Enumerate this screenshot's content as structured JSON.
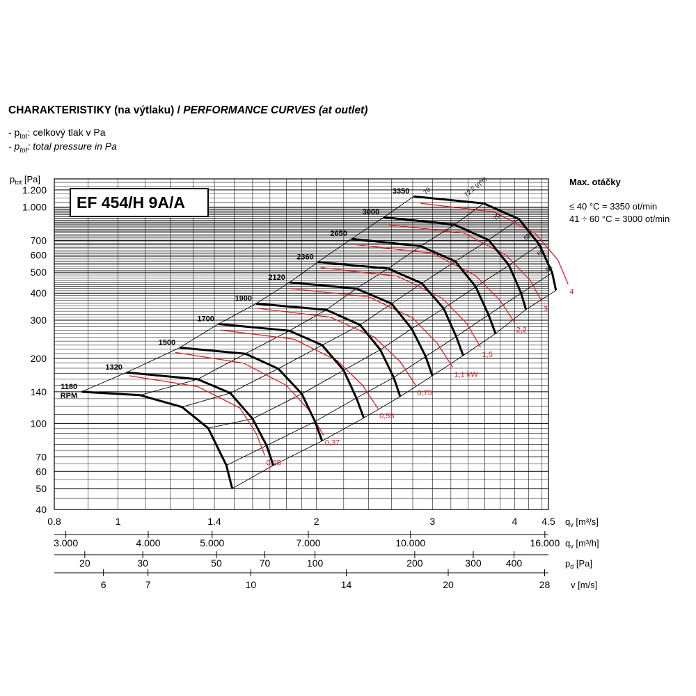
{
  "title_bold": "CHARAKTERISTIKY (na výtlaku) / ",
  "title_italic": "PERFORMANCE CURVES (at outlet)",
  "legend_cz": {
    "prefix": "- p",
    "sub": "tot",
    "suffix": ": celkový tlak v Pa"
  },
  "legend_en": {
    "prefix": "- p",
    "sub": "tot",
    "suffix": ": total pressure in Pa"
  },
  "model": "EF 454/H 9A/A",
  "max_speed": {
    "title": "Max. otáčky",
    "line1": "≤ 40 °C = 3350 ot/min",
    "line2": "41 ÷ 60 °C = 3000 ot/min"
  },
  "chart_data": {
    "type": "line",
    "x_scale": "log",
    "y_scale": "log",
    "ylabel": {
      "main": "p",
      "sub": "tot",
      "unit": " [Pa]"
    },
    "y_ticks": [
      "1.200",
      "1.000",
      "700",
      "600",
      "500",
      "400",
      "300",
      "200",
      "140",
      "100",
      "70",
      "60",
      "50",
      "40"
    ],
    "y_tick_values": [
      1200,
      1000,
      700,
      600,
      500,
      400,
      300,
      200,
      140,
      100,
      70,
      60,
      50,
      40
    ],
    "ylim": [
      40,
      1350
    ],
    "xlim": [
      0.8,
      4.5
    ],
    "x_axes": [
      {
        "label": "q",
        "label_sub": "v",
        "unit": " [m³/s]",
        "ticks": [
          "0.8",
          "1",
          "1.4",
          "2",
          "3",
          "4",
          "4.5"
        ],
        "values": [
          0.8,
          1,
          1.4,
          2,
          3,
          4,
          4.5
        ]
      },
      {
        "label": "q",
        "label_sub": "v",
        "unit": " [m³/h]",
        "ticks": [
          "3.000",
          "4.000",
          "5.000",
          "7.000",
          "10.000",
          "16.000"
        ],
        "values": [
          0.833,
          1.111,
          1.389,
          1.944,
          2.778,
          4.444
        ]
      },
      {
        "label": "p",
        "label_sub": "d",
        "unit": " [Pa]",
        "ticks": [
          "20",
          "30",
          "50",
          "70",
          "100",
          "200",
          "300",
          "400"
        ],
        "values": [
          0.89,
          1.09,
          1.41,
          1.67,
          1.99,
          2.82,
          3.46,
          3.99
        ]
      },
      {
        "label": "v",
        "label_sub": "",
        "unit": " [m/s]",
        "ticks": [
          "6",
          "7",
          "10",
          "14",
          "20",
          "28"
        ],
        "values": [
          0.95,
          1.11,
          1.59,
          2.22,
          3.17,
          4.44
        ]
      }
    ],
    "speed_curves": [
      {
        "name": "1180",
        "name2": "RPM",
        "points": [
          [
            0.88,
            140
          ],
          [
            1.08,
            135
          ],
          [
            1.25,
            119
          ],
          [
            1.37,
            95
          ],
          [
            1.46,
            64
          ],
          [
            1.49,
            50
          ]
        ]
      },
      {
        "name": "1320",
        "points": [
          [
            1.03,
            172
          ],
          [
            1.32,
            160
          ],
          [
            1.48,
            138
          ],
          [
            1.6,
            105
          ],
          [
            1.68,
            79
          ],
          [
            1.72,
            64
          ]
        ]
      },
      {
        "name": "1500",
        "points": [
          [
            1.24,
            224
          ],
          [
            1.56,
            210
          ],
          [
            1.75,
            179
          ],
          [
            1.9,
            137
          ],
          [
            1.99,
            102
          ],
          [
            2.04,
            83
          ]
        ]
      },
      {
        "name": "1700",
        "points": [
          [
            1.42,
            288
          ],
          [
            1.82,
            268
          ],
          [
            2.04,
            230
          ],
          [
            2.2,
            176
          ],
          [
            2.3,
            131
          ],
          [
            2.36,
            106
          ]
        ]
      },
      {
        "name": "1900",
        "points": [
          [
            1.62,
            358
          ],
          [
            2.07,
            335
          ],
          [
            2.33,
            285
          ],
          [
            2.5,
            219
          ],
          [
            2.62,
            163
          ],
          [
            2.68,
            133
          ]
        ]
      },
      {
        "name": "2120",
        "points": [
          [
            1.82,
            448
          ],
          [
            2.3,
            420
          ],
          [
            2.6,
            358
          ],
          [
            2.79,
            274
          ],
          [
            2.93,
            204
          ],
          [
            3.0,
            166
          ]
        ]
      },
      {
        "name": "2360",
        "points": [
          [
            2.01,
            557
          ],
          [
            2.57,
            520
          ],
          [
            2.89,
            444
          ],
          [
            3.12,
            340
          ],
          [
            3.26,
            252
          ],
          [
            3.34,
            206
          ]
        ]
      },
      {
        "name": "2650",
        "points": [
          [
            2.26,
            713
          ],
          [
            2.88,
            660
          ],
          [
            3.25,
            561
          ],
          [
            3.49,
            428
          ],
          [
            3.65,
            318
          ],
          [
            3.74,
            260
          ]
        ]
      },
      {
        "name": "3000",
        "points": [
          [
            2.53,
            897
          ],
          [
            3.24,
            830
          ],
          [
            3.65,
            705
          ],
          [
            3.92,
            538
          ],
          [
            4.09,
            400
          ],
          [
            4.16,
            336
          ]
        ]
      },
      {
        "name": "3350",
        "points": [
          [
            2.81,
            1120
          ],
          [
            3.59,
            1040
          ],
          [
            4.06,
            880
          ],
          [
            4.36,
            670
          ],
          [
            4.56,
            497
          ],
          [
            4.62,
            412
          ]
        ]
      }
    ],
    "power_curves": [
      {
        "name": "0,25",
        "points": [
          [
            1.04,
            166
          ],
          [
            1.32,
            148
          ],
          [
            1.53,
            118
          ],
          [
            1.62,
            90
          ],
          [
            1.67,
            71
          ]
        ]
      },
      {
        "name": "0,37",
        "points": [
          [
            1.22,
            213
          ],
          [
            1.55,
            190
          ],
          [
            1.8,
            150
          ],
          [
            1.95,
            115
          ],
          [
            2.05,
            88
          ]
        ]
      },
      {
        "name": "0,55",
        "points": [
          [
            1.43,
            270
          ],
          [
            1.85,
            245
          ],
          [
            2.15,
            195
          ],
          [
            2.35,
            150
          ],
          [
            2.48,
            117
          ]
        ]
      },
      {
        "name": "0,75",
        "points": [
          [
            1.63,
            340
          ],
          [
            2.1,
            310
          ],
          [
            2.45,
            250
          ],
          [
            2.68,
            193
          ],
          [
            2.83,
            150
          ]
        ]
      },
      {
        "name": "1,1 kW",
        "points": [
          [
            1.83,
            420
          ],
          [
            2.4,
            385
          ],
          [
            2.8,
            307
          ],
          [
            3.05,
            235
          ],
          [
            3.22,
            182
          ]
        ]
      },
      {
        "name": "1,5",
        "points": [
          [
            2.03,
            525
          ],
          [
            2.65,
            480
          ],
          [
            3.1,
            380
          ],
          [
            3.38,
            290
          ],
          [
            3.55,
            225
          ]
        ]
      },
      {
        "name": "2,2",
        "points": [
          [
            2.3,
            670
          ],
          [
            3.0,
            612
          ],
          [
            3.48,
            485
          ],
          [
            3.8,
            370
          ],
          [
            4.0,
            292
          ]
        ]
      },
      {
        "name": "3",
        "points": [
          [
            2.58,
            830
          ],
          [
            3.35,
            758
          ],
          [
            3.88,
            600
          ],
          [
            4.22,
            459
          ],
          [
            4.4,
            365
          ]
        ]
      },
      {
        "name": "4",
        "points": [
          [
            2.88,
            1040
          ],
          [
            3.72,
            950
          ],
          [
            4.3,
            754
          ],
          [
            4.65,
            570
          ],
          [
            4.82,
            440
          ]
        ]
      }
    ],
    "efficiency_labels": [
      {
        "name": "70",
        "x": 2.93,
        "y": 1140
      },
      {
        "name": "72,2 (η%)",
        "x": 3.38,
        "y": 1110
      },
      {
        "name": "70",
        "x": 3.74,
        "y": 865
      },
      {
        "name": "65",
        "x": 4.16,
        "y": 700
      },
      {
        "name": "60",
        "x": 4.36,
        "y": 592
      },
      {
        "name": "55",
        "x": 4.49,
        "y": 498
      }
    ]
  }
}
